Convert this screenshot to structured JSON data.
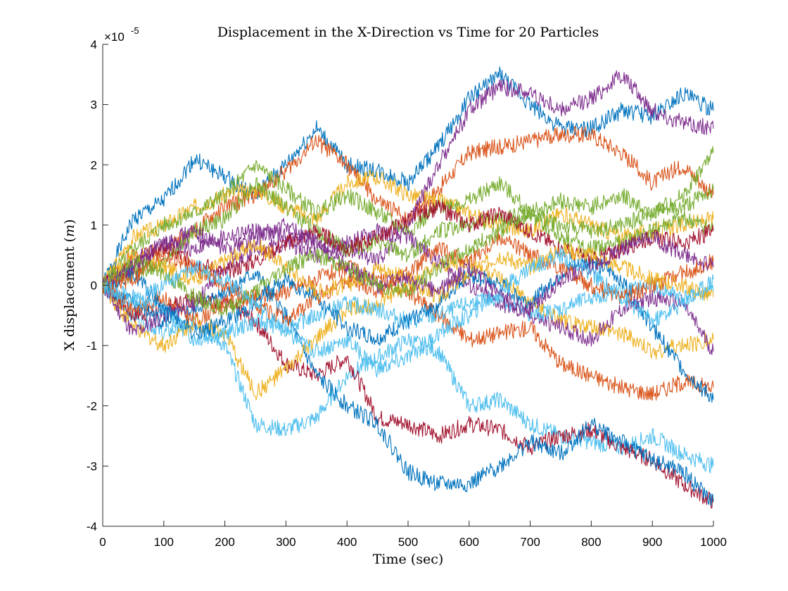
{
  "chart_data": {
    "type": "line",
    "title": "Displacement in the X-Direction vs Time for 20 Particles",
    "xlabel": "Time (sec)",
    "ylabel_prefix": "X displacement (",
    "ylabel_unit": "m",
    "ylabel_suffix": ")",
    "xlim": [
      0,
      1000
    ],
    "ylim": [
      -4,
      4
    ],
    "y_exponent_base": "×10",
    "y_exponent_power": "-5",
    "x_ticks": [
      "0",
      "100",
      "200",
      "300",
      "400",
      "500",
      "600",
      "700",
      "800",
      "900",
      "1000"
    ],
    "y_ticks": [
      "-4",
      "-3",
      "-2",
      "-1",
      "0",
      "1",
      "2",
      "3",
      "4"
    ],
    "grid": false,
    "legend": "none",
    "series": [
      {
        "color": "#0072BD",
        "x": [
          0,
          50,
          100,
          150,
          200,
          250,
          300,
          350,
          400,
          450,
          500,
          550,
          600,
          650,
          700,
          750,
          800,
          850,
          900,
          950,
          1000
        ],
        "y": [
          0,
          1.1,
          1.4,
          2.1,
          1.8,
          1.5,
          2.0,
          2.6,
          2.0,
          1.9,
          1.7,
          2.3,
          3.1,
          3.5,
          3.0,
          2.6,
          2.6,
          2.9,
          2.8,
          3.2,
          2.9
        ]
      },
      {
        "color": "#D95319",
        "x": [
          0,
          50,
          100,
          150,
          200,
          250,
          300,
          350,
          400,
          450,
          500,
          550,
          600,
          650,
          700,
          750,
          800,
          850,
          900,
          950,
          1000
        ],
        "y": [
          0,
          0.5,
          0.6,
          0.9,
          1.3,
          1.5,
          1.9,
          2.4,
          2.0,
          1.4,
          1.1,
          1.6,
          2.2,
          2.3,
          2.4,
          2.5,
          2.5,
          2.2,
          1.7,
          2.0,
          1.5
        ]
      },
      {
        "color": "#EDB120",
        "x": [
          0,
          50,
          100,
          150,
          200,
          250,
          300,
          350,
          400,
          450,
          500,
          550,
          600,
          650,
          700,
          750,
          800,
          850,
          900,
          950,
          1000
        ],
        "y": [
          0,
          0.8,
          1.0,
          1.3,
          1.5,
          1.6,
          1.3,
          1.1,
          1.7,
          1.8,
          1.5,
          1.4,
          1.2,
          1.0,
          0.9,
          1.2,
          1.0,
          0.8,
          0.9,
          1.0,
          1.1
        ]
      },
      {
        "color": "#7E2F8E",
        "x": [
          0,
          50,
          100,
          150,
          200,
          250,
          300,
          350,
          400,
          450,
          500,
          550,
          600,
          650,
          700,
          750,
          800,
          850,
          900,
          950,
          1000
        ],
        "y": [
          0,
          0.4,
          0.7,
          0.6,
          0.8,
          0.9,
          0.8,
          0.7,
          0.6,
          0.4,
          1.0,
          2.0,
          2.9,
          3.3,
          3.2,
          2.9,
          3.1,
          3.5,
          2.9,
          2.7,
          2.6
        ]
      },
      {
        "color": "#77AC30",
        "x": [
          0,
          50,
          100,
          150,
          200,
          250,
          300,
          350,
          400,
          450,
          500,
          550,
          600,
          650,
          700,
          750,
          800,
          850,
          900,
          950,
          1000
        ],
        "y": [
          0,
          0.6,
          1.0,
          1.2,
          1.5,
          2.0,
          1.6,
          1.2,
          1.5,
          1.2,
          0.9,
          1.3,
          1.4,
          1.7,
          1.2,
          1.0,
          0.9,
          1.0,
          1.2,
          1.5,
          2.2
        ]
      },
      {
        "color": "#4DBEEE",
        "x": [
          0,
          50,
          100,
          150,
          200,
          250,
          300,
          350,
          400,
          450,
          500,
          550,
          600,
          650,
          700,
          750,
          800,
          850,
          900,
          950,
          1000
        ],
        "y": [
          0,
          -0.5,
          -0.8,
          -0.6,
          -1.0,
          -2.3,
          -2.4,
          -2.2,
          -1.5,
          -1.2,
          -0.9,
          -1.1,
          -2.0,
          -1.9,
          -2.3,
          -2.5,
          -2.6,
          -2.7,
          -2.5,
          -2.8,
          -3.0
        ]
      },
      {
        "color": "#A2142F",
        "x": [
          0,
          50,
          100,
          150,
          200,
          250,
          300,
          350,
          400,
          450,
          500,
          550,
          600,
          650,
          700,
          750,
          800,
          850,
          900,
          950,
          1000
        ],
        "y": [
          0,
          -0.5,
          -0.4,
          -0.2,
          -0.3,
          -0.6,
          -1.3,
          -1.5,
          -1.2,
          -2.2,
          -2.3,
          -2.5,
          -2.3,
          -2.4,
          -2.7,
          -2.5,
          -2.4,
          -2.7,
          -2.9,
          -3.3,
          -3.6
        ]
      },
      {
        "color": "#0072BD",
        "x": [
          0,
          50,
          100,
          150,
          200,
          250,
          300,
          350,
          400,
          450,
          500,
          550,
          600,
          650,
          700,
          750,
          800,
          850,
          900,
          950,
          1000
        ],
        "y": [
          0,
          -0.3,
          -0.6,
          -0.4,
          -0.1,
          0.2,
          -0.5,
          -1.5,
          -2.0,
          -2.3,
          -3.1,
          -3.3,
          -3.3,
          -3.0,
          -2.6,
          -2.8,
          -2.3,
          -2.6,
          -2.9,
          -3.1,
          -3.6
        ]
      },
      {
        "color": "#D95319",
        "x": [
          0,
          50,
          100,
          150,
          200,
          250,
          300,
          350,
          400,
          450,
          500,
          550,
          600,
          650,
          700,
          750,
          800,
          850,
          900,
          950,
          1000
        ],
        "y": [
          0,
          -0.4,
          -0.2,
          -0.6,
          -0.3,
          -0.2,
          -0.1,
          0.1,
          0.3,
          0.1,
          -0.1,
          -0.5,
          -0.9,
          -0.8,
          -0.7,
          -1.3,
          -1.5,
          -1.7,
          -1.8,
          -1.6,
          -1.7
        ]
      },
      {
        "color": "#EDB120",
        "x": [
          0,
          50,
          100,
          150,
          200,
          250,
          300,
          350,
          400,
          450,
          500,
          550,
          600,
          650,
          700,
          750,
          800,
          850,
          900,
          950,
          1000
        ],
        "y": [
          0,
          -0.7,
          -1.0,
          -0.6,
          -0.8,
          -1.8,
          -1.4,
          -0.9,
          -0.4,
          -0.3,
          0.0,
          0.3,
          0.4,
          0.1,
          -0.3,
          -0.6,
          -0.7,
          -0.8,
          -1.1,
          -1.0,
          -0.9
        ]
      },
      {
        "color": "#7E2F8E",
        "x": [
          0,
          50,
          100,
          150,
          200,
          250,
          300,
          350,
          400,
          450,
          500,
          550,
          600,
          650,
          700,
          750,
          800,
          850,
          900,
          950,
          1000
        ],
        "y": [
          0,
          -0.8,
          -0.5,
          -0.3,
          0.3,
          0.6,
          0.7,
          0.5,
          0.7,
          0.9,
          0.8,
          0.4,
          0.0,
          -0.3,
          -0.5,
          -0.7,
          -0.9,
          -0.4,
          -0.2,
          -0.3,
          -1.1
        ]
      },
      {
        "color": "#77AC30",
        "x": [
          0,
          50,
          100,
          150,
          200,
          250,
          300,
          350,
          400,
          450,
          500,
          550,
          600,
          650,
          700,
          750,
          800,
          850,
          900,
          950,
          1000
        ],
        "y": [
          0,
          0.2,
          0.4,
          0.9,
          1.1,
          1.7,
          1.3,
          0.9,
          0.6,
          0.7,
          0.5,
          0.9,
          1.0,
          1.1,
          1.2,
          0.8,
          0.6,
          0.7,
          0.9,
          1.1,
          0.9
        ]
      },
      {
        "color": "#4DBEEE",
        "x": [
          0,
          50,
          100,
          150,
          200,
          250,
          300,
          350,
          400,
          450,
          500,
          550,
          600,
          650,
          700,
          750,
          800,
          850,
          900,
          950,
          1000
        ],
        "y": [
          0,
          -0.2,
          -0.4,
          -0.9,
          -0.8,
          -0.6,
          -0.7,
          -0.5,
          -0.3,
          -0.4,
          -0.6,
          -0.5,
          -0.3,
          -0.2,
          -0.5,
          -0.4,
          -0.2,
          -0.1,
          0.0,
          -0.2,
          -0.1
        ]
      },
      {
        "color": "#A2142F",
        "x": [
          0,
          50,
          100,
          150,
          200,
          250,
          300,
          350,
          400,
          450,
          500,
          550,
          600,
          650,
          700,
          750,
          800,
          850,
          900,
          950,
          1000
        ],
        "y": [
          0,
          0.3,
          0.6,
          0.4,
          0.2,
          0.4,
          0.7,
          0.9,
          0.6,
          0.8,
          1.1,
          1.3,
          1.0,
          1.2,
          0.9,
          0.6,
          0.4,
          0.6,
          0.8,
          0.7,
          0.9
        ]
      },
      {
        "color": "#0072BD",
        "x": [
          0,
          50,
          100,
          150,
          200,
          250,
          300,
          350,
          400,
          450,
          500,
          550,
          600,
          650,
          700,
          750,
          800,
          850,
          900,
          950,
          1000
        ],
        "y": [
          0,
          0.2,
          -0.4,
          -0.8,
          -0.6,
          -0.3,
          0.1,
          -0.2,
          -0.7,
          -0.9,
          -0.6,
          -0.3,
          0.2,
          0.0,
          -0.3,
          0.2,
          0.4,
          0.1,
          -0.7,
          -1.4,
          -1.9
        ]
      },
      {
        "color": "#D95319",
        "x": [
          0,
          50,
          100,
          150,
          200,
          250,
          300,
          350,
          400,
          450,
          500,
          550,
          600,
          650,
          700,
          750,
          800,
          850,
          900,
          950,
          1000
        ],
        "y": [
          0,
          0.1,
          0.5,
          0.3,
          0.0,
          -0.3,
          -0.6,
          -0.2,
          0.1,
          -0.1,
          0.2,
          0.6,
          0.4,
          0.8,
          0.5,
          0.3,
          0.0,
          -0.2,
          0.0,
          0.2,
          0.4
        ]
      },
      {
        "color": "#EDB120",
        "x": [
          0,
          50,
          100,
          150,
          200,
          250,
          300,
          350,
          400,
          450,
          500,
          550,
          600,
          650,
          700,
          750,
          800,
          850,
          900,
          950,
          1000
        ],
        "y": [
          0,
          0.5,
          0.3,
          0.1,
          0.4,
          0.7,
          0.3,
          -0.1,
          0.0,
          0.3,
          0.1,
          -0.2,
          0.2,
          0.5,
          0.3,
          0.6,
          0.5,
          0.3,
          0.1,
          0.0,
          -0.2
        ]
      },
      {
        "color": "#7E2F8E",
        "x": [
          0,
          50,
          100,
          150,
          200,
          250,
          300,
          350,
          400,
          450,
          500,
          550,
          600,
          650,
          700,
          750,
          800,
          850,
          900,
          950,
          1000
        ],
        "y": [
          0,
          0.3,
          0.7,
          0.9,
          0.6,
          0.8,
          1.0,
          0.7,
          0.3,
          0.0,
          0.1,
          -0.1,
          0.3,
          -0.2,
          -0.4,
          0.1,
          0.3,
          0.6,
          0.8,
          0.5,
          0.3
        ]
      },
      {
        "color": "#77AC30",
        "x": [
          0,
          50,
          100,
          150,
          200,
          250,
          300,
          350,
          400,
          450,
          500,
          550,
          600,
          650,
          700,
          750,
          800,
          850,
          900,
          950,
          1000
        ],
        "y": [
          0,
          0.4,
          0.2,
          -0.2,
          -0.4,
          -0.1,
          0.3,
          0.5,
          0.3,
          0.0,
          -0.1,
          0.3,
          0.6,
          0.9,
          1.2,
          1.4,
          1.3,
          1.5,
          1.2,
          1.3,
          1.6
        ]
      },
      {
        "color": "#4DBEEE",
        "x": [
          0,
          50,
          100,
          150,
          200,
          250,
          300,
          350,
          400,
          450,
          500,
          550,
          600,
          650,
          700,
          750,
          800,
          850,
          900,
          950,
          1000
        ],
        "y": [
          0,
          -0.3,
          0.0,
          0.3,
          0.1,
          -0.3,
          -0.8,
          -1.1,
          -0.9,
          -1.4,
          -1.2,
          -0.8,
          -0.5,
          -0.1,
          0.3,
          0.5,
          0.2,
          -0.2,
          -0.6,
          -0.3,
          0.1
        ]
      }
    ]
  }
}
